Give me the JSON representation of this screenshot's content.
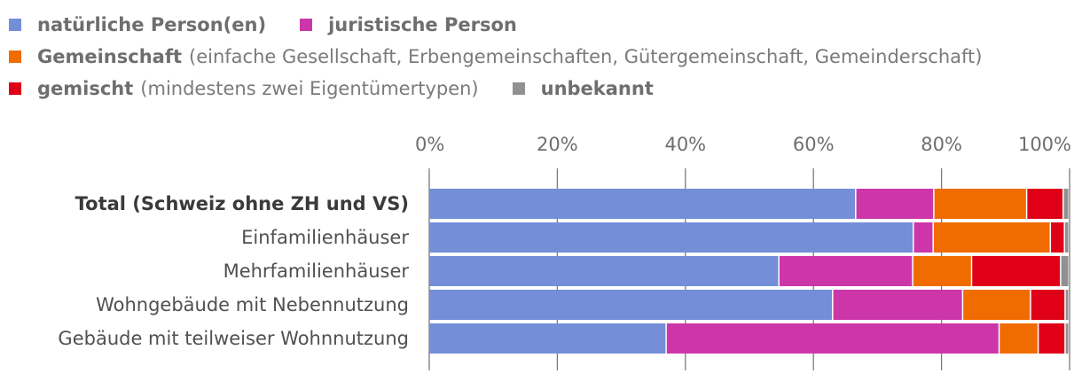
{
  "colors": {
    "natuerlich": "#748ed8",
    "juristisch": "#cc36a8",
    "gemeinschaft": "#f06c00",
    "gemischt": "#df0018",
    "unbekannt": "#919191",
    "axis": "#6e6e6e",
    "grid": "#7a7a7a"
  },
  "legend": {
    "items": [
      {
        "label": "natürliche Person(en)",
        "note": "",
        "color": "#748ed8",
        "row": 0
      },
      {
        "label": "juristische Person",
        "note": "",
        "color": "#cc36a8",
        "row": 0
      },
      {
        "label": "Gemeinschaft",
        "note": "(einfache Gesellschaft, Erbengemeinschaften, Gütergemeinschaft, Gemeinderschaft)",
        "color": "#f06c00",
        "row": 1
      },
      {
        "label": "gemischt",
        "note": "(mindestens zwei Eigentümertypen)",
        "color": "#df0018",
        "row": 2
      },
      {
        "label": "unbekannt",
        "note": "",
        "color": "#919191",
        "row": 2
      }
    ]
  },
  "chart_data": {
    "type": "bar",
    "orientation": "horizontal",
    "stacked": true,
    "categories": [
      "Total (Schweiz ohne ZH und VS)",
      "Einfamilienhäuser",
      "Mehrfamilienhäuser",
      "Wohngebäude mit Nebennutzung",
      "Gebäude mit teilweiser Wohnnutzung"
    ],
    "bold_categories": [
      0
    ],
    "x_ticks": [
      "0%",
      "20%",
      "40%",
      "60%",
      "80%",
      "100%"
    ],
    "xlim": [
      0,
      100
    ],
    "gridlines": true,
    "legend_position": "top-left",
    "series": [
      {
        "name": "natürliche Person(en)",
        "color": "#748ed8",
        "values": [
          66.7,
          75.7,
          54.7,
          63.1,
          37.1
        ]
      },
      {
        "name": "juristische Person",
        "color": "#cc36a8",
        "values": [
          12.2,
          3.1,
          20.9,
          20.3,
          52.0
        ]
      },
      {
        "name": "Gemeinschaft",
        "color": "#f06c00",
        "values": [
          14.5,
          18.3,
          9.2,
          10.6,
          6.1
        ]
      },
      {
        "name": "gemischt",
        "color": "#df0018",
        "values": [
          5.7,
          2.2,
          13.9,
          5.4,
          4.2
        ]
      },
      {
        "name": "unbekannt",
        "color": "#919191",
        "values": [
          0.9,
          0.7,
          1.3,
          0.6,
          0.6
        ]
      }
    ]
  }
}
